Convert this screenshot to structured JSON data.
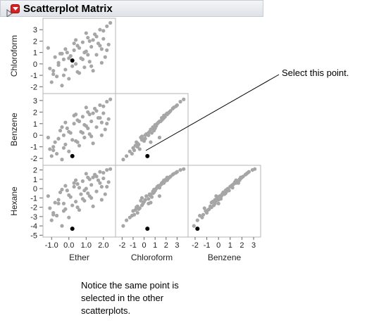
{
  "report": {
    "title": "Scatterplot Matrix",
    "collapse_icon": "disclosure-triangle-icon",
    "menu_icon": "red-triangle-menu-icon"
  },
  "annotations": {
    "select": "Select this point.",
    "notice": "Notice the same point is selected in the other scatterplots."
  },
  "colors": {
    "point": "#a6a6a6",
    "selected_point": "#000000",
    "frame": "#b4b4b4",
    "header_bg": "#e6e8ec",
    "menu_red": "#d42323"
  },
  "chart_data": {
    "type": "scatter",
    "title": "Scatterplot Matrix",
    "variables": [
      "Ether",
      "Chloroform",
      "Benzene",
      "Hexane"
    ],
    "row_variables": [
      "Chloroform",
      "Benzene",
      "Hexane"
    ],
    "column_variables": [
      "Ether",
      "Chloroform",
      "Benzene"
    ],
    "ranges": {
      "Ether": [
        -1.5,
        2.7
      ],
      "Chloroform": [
        -2.6,
        4.0
      ],
      "Benzene": [
        -2.6,
        3.6
      ],
      "Hexane": [
        -5.2,
        2.5
      ]
    },
    "ticks": {
      "Ether": [
        -1.0,
        0.0,
        1.0,
        2.0
      ],
      "Chloroform": [
        -2,
        -1,
        0,
        1,
        2,
        3
      ],
      "Benzene": [
        -2,
        -1,
        0,
        1,
        2,
        3
      ],
      "Hexane": [
        -5,
        -4,
        -3,
        -2,
        -1,
        0,
        1,
        2
      ]
    },
    "tick_labels": {
      "Ether": [
        "-1.0",
        "0.0",
        "1.0",
        "2.0"
      ],
      "Chloroform": [
        "-2",
        "-1",
        "0",
        "1",
        "2",
        "3"
      ],
      "Benzene": [
        "-2",
        "-1",
        "0",
        "1",
        "2",
        "3"
      ],
      "Hexane": [
        "-5",
        "-4",
        "-3",
        "-2",
        "-1",
        "0",
        "1",
        "2"
      ]
    },
    "grid": false,
    "selected_index": 0,
    "points": [
      {
        "Ether": 0.2,
        "Chloroform": 0.3,
        "Benzene": -1.8,
        "Hexane": -4.3
      },
      {
        "Ether": -1.2,
        "Chloroform": 1.4,
        "Benzene": -0.2,
        "Hexane": -0.8
      },
      {
        "Ether": -1.1,
        "Chloroform": -0.4,
        "Benzene": -1.2,
        "Hexane": -2.1
      },
      {
        "Ether": -0.9,
        "Chloroform": -0.6,
        "Benzene": -1.0,
        "Hexane": -2.6
      },
      {
        "Ether": -0.8,
        "Chloroform": 0.6,
        "Benzene": -0.6,
        "Hexane": -1.5
      },
      {
        "Ether": -0.7,
        "Chloroform": -1.1,
        "Benzene": -1.6,
        "Hexane": -2.9
      },
      {
        "Ether": -0.6,
        "Chloroform": 0.1,
        "Benzene": -0.3,
        "Hexane": -1.2
      },
      {
        "Ether": -0.5,
        "Chloroform": 0.9,
        "Benzene": 0.4,
        "Hexane": -0.4
      },
      {
        "Ether": -0.4,
        "Chloroform": -1.9,
        "Benzene": -2.1,
        "Hexane": -4.0
      },
      {
        "Ether": -0.3,
        "Chloroform": 0.4,
        "Benzene": 0.0,
        "Hexane": -1.6
      },
      {
        "Ether": -0.2,
        "Chloroform": -0.5,
        "Benzene": -0.8,
        "Hexane": -2.2
      },
      {
        "Ether": -0.1,
        "Chloroform": 1.0,
        "Benzene": 0.6,
        "Hexane": -0.2
      },
      {
        "Ether": 0.0,
        "Chloroform": -1.3,
        "Benzene": -1.4,
        "Hexane": -3.1
      },
      {
        "Ether": 0.1,
        "Chloroform": 0.7,
        "Benzene": 0.2,
        "Hexane": -0.9
      },
      {
        "Ether": 0.2,
        "Chloroform": -0.2,
        "Benzene": -0.4,
        "Hexane": -1.8
      },
      {
        "Ether": 0.3,
        "Chloroform": 1.2,
        "Benzene": 1.0,
        "Hexane": 0.2
      },
      {
        "Ether": 0.4,
        "Chloroform": 0.0,
        "Benzene": -0.5,
        "Hexane": -1.4
      },
      {
        "Ether": 0.5,
        "Chloroform": 1.6,
        "Benzene": 1.3,
        "Hexane": 0.5
      },
      {
        "Ether": 0.6,
        "Chloroform": -0.8,
        "Benzene": -0.9,
        "Hexane": -2.3
      },
      {
        "Ether": 0.7,
        "Chloroform": 0.5,
        "Benzene": 0.3,
        "Hexane": -0.6
      },
      {
        "Ether": 0.8,
        "Chloroform": 1.9,
        "Benzene": 1.6,
        "Hexane": 0.8
      },
      {
        "Ether": 0.9,
        "Chloroform": -0.3,
        "Benzene": -0.2,
        "Hexane": -1.3
      },
      {
        "Ether": 1.0,
        "Chloroform": 1.1,
        "Benzene": 0.8,
        "Hexane": 0.0
      },
      {
        "Ether": 1.1,
        "Chloroform": 2.3,
        "Benzene": 2.0,
        "Hexane": 1.2
      },
      {
        "Ether": 1.2,
        "Chloroform": 0.2,
        "Benzene": 0.1,
        "Hexane": -0.8
      },
      {
        "Ether": 1.3,
        "Chloroform": 1.5,
        "Benzene": 1.2,
        "Hexane": 0.4
      },
      {
        "Ether": 1.4,
        "Chloroform": -0.6,
        "Benzene": -0.7,
        "Hexane": -1.9
      },
      {
        "Ether": 1.5,
        "Chloroform": 2.6,
        "Benzene": 2.3,
        "Hexane": 1.5
      },
      {
        "Ether": 1.6,
        "Chloroform": 0.8,
        "Benzene": 0.7,
        "Hexane": -0.3
      },
      {
        "Ether": 1.7,
        "Chloroform": 1.8,
        "Benzene": 1.5,
        "Hexane": 0.9
      },
      {
        "Ether": 1.8,
        "Chloroform": 3.0,
        "Benzene": 2.6,
        "Hexane": 1.8
      },
      {
        "Ether": 1.9,
        "Chloroform": 1.3,
        "Benzene": 1.1,
        "Hexane": 0.2
      },
      {
        "Ether": 2.0,
        "Chloroform": 2.2,
        "Benzene": 1.9,
        "Hexane": 1.1
      },
      {
        "Ether": 2.1,
        "Chloroform": 0.6,
        "Benzene": 0.5,
        "Hexane": -0.6
      },
      {
        "Ether": 2.2,
        "Chloroform": 3.3,
        "Benzene": 2.9,
        "Hexane": 2.0
      },
      {
        "Ether": 2.3,
        "Chloroform": 1.7,
        "Benzene": 1.4,
        "Hexane": 0.7
      },
      {
        "Ether": 2.4,
        "Chloroform": 3.6,
        "Benzene": 3.1,
        "Hexane": 2.1
      },
      {
        "Ether": -0.4,
        "Chloroform": 0.9,
        "Benzene": 0.7,
        "Hexane": -0.1
      },
      {
        "Ether": 0.3,
        "Chloroform": 1.8,
        "Benzene": 1.7,
        "Hexane": 0.6
      },
      {
        "Ether": 0.8,
        "Chloroform": 0.4,
        "Benzene": 0.2,
        "Hexane": -1.1
      },
      {
        "Ether": 1.2,
        "Chloroform": 2.0,
        "Benzene": 1.8,
        "Hexane": 1.0
      },
      {
        "Ether": 1.6,
        "Chloroform": 2.4,
        "Benzene": 2.1,
        "Hexane": 1.3
      },
      {
        "Ether": -0.9,
        "Chloroform": -0.9,
        "Benzene": -1.3,
        "Hexane": -2.8
      },
      {
        "Ether": -0.2,
        "Chloroform": 1.3,
        "Benzene": 1.1,
        "Hexane": 0.3
      },
      {
        "Ether": 0.5,
        "Chloroform": -0.7,
        "Benzene": -0.6,
        "Hexane": -2.0
      },
      {
        "Ether": 1.0,
        "Chloroform": 2.7,
        "Benzene": 2.4,
        "Hexane": 1.6
      },
      {
        "Ether": 1.9,
        "Chloroform": 0.1,
        "Benzene": 0.0,
        "Hexane": -1.2
      },
      {
        "Ether": 2.0,
        "Chloroform": 2.9,
        "Benzene": 2.5,
        "Hexane": 1.7
      },
      {
        "Ether": -0.6,
        "Chloroform": -0.1,
        "Benzene": -0.3,
        "Hexane": -1.6
      },
      {
        "Ether": 0.6,
        "Chloroform": 1.4,
        "Benzene": 1.2,
        "Hexane": 0.1
      },
      {
        "Ether": 1.3,
        "Chloroform": -0.2,
        "Benzene": -0.1,
        "Hexane": -1.0
      },
      {
        "Ether": 1.8,
        "Chloroform": 1.6,
        "Benzene": 1.5,
        "Hexane": 0.6
      },
      {
        "Ether": -1.0,
        "Chloroform": -1.6,
        "Benzene": -1.8,
        "Hexane": -3.4
      },
      {
        "Ether": 0.0,
        "Chloroform": 0.5,
        "Benzene": 0.3,
        "Hexane": -0.7
      },
      {
        "Ether": 0.9,
        "Chloroform": 1.0,
        "Benzene": 0.9,
        "Hexane": -0.2
      },
      {
        "Ether": 1.4,
        "Chloroform": 2.1,
        "Benzene": 1.9,
        "Hexane": 1.2
      },
      {
        "Ether": 2.2,
        "Chloroform": 1.2,
        "Benzene": 1.0,
        "Hexane": 0.2
      },
      {
        "Ether": -0.3,
        "Chloroform": -1.0,
        "Benzene": -1.1,
        "Hexane": -2.4
      },
      {
        "Ether": 0.4,
        "Chloroform": 2.1,
        "Benzene": 1.8,
        "Hexane": 0.9
      },
      {
        "Ether": 1.1,
        "Chloroform": 0.8,
        "Benzene": 0.6,
        "Hexane": -0.5
      }
    ]
  }
}
